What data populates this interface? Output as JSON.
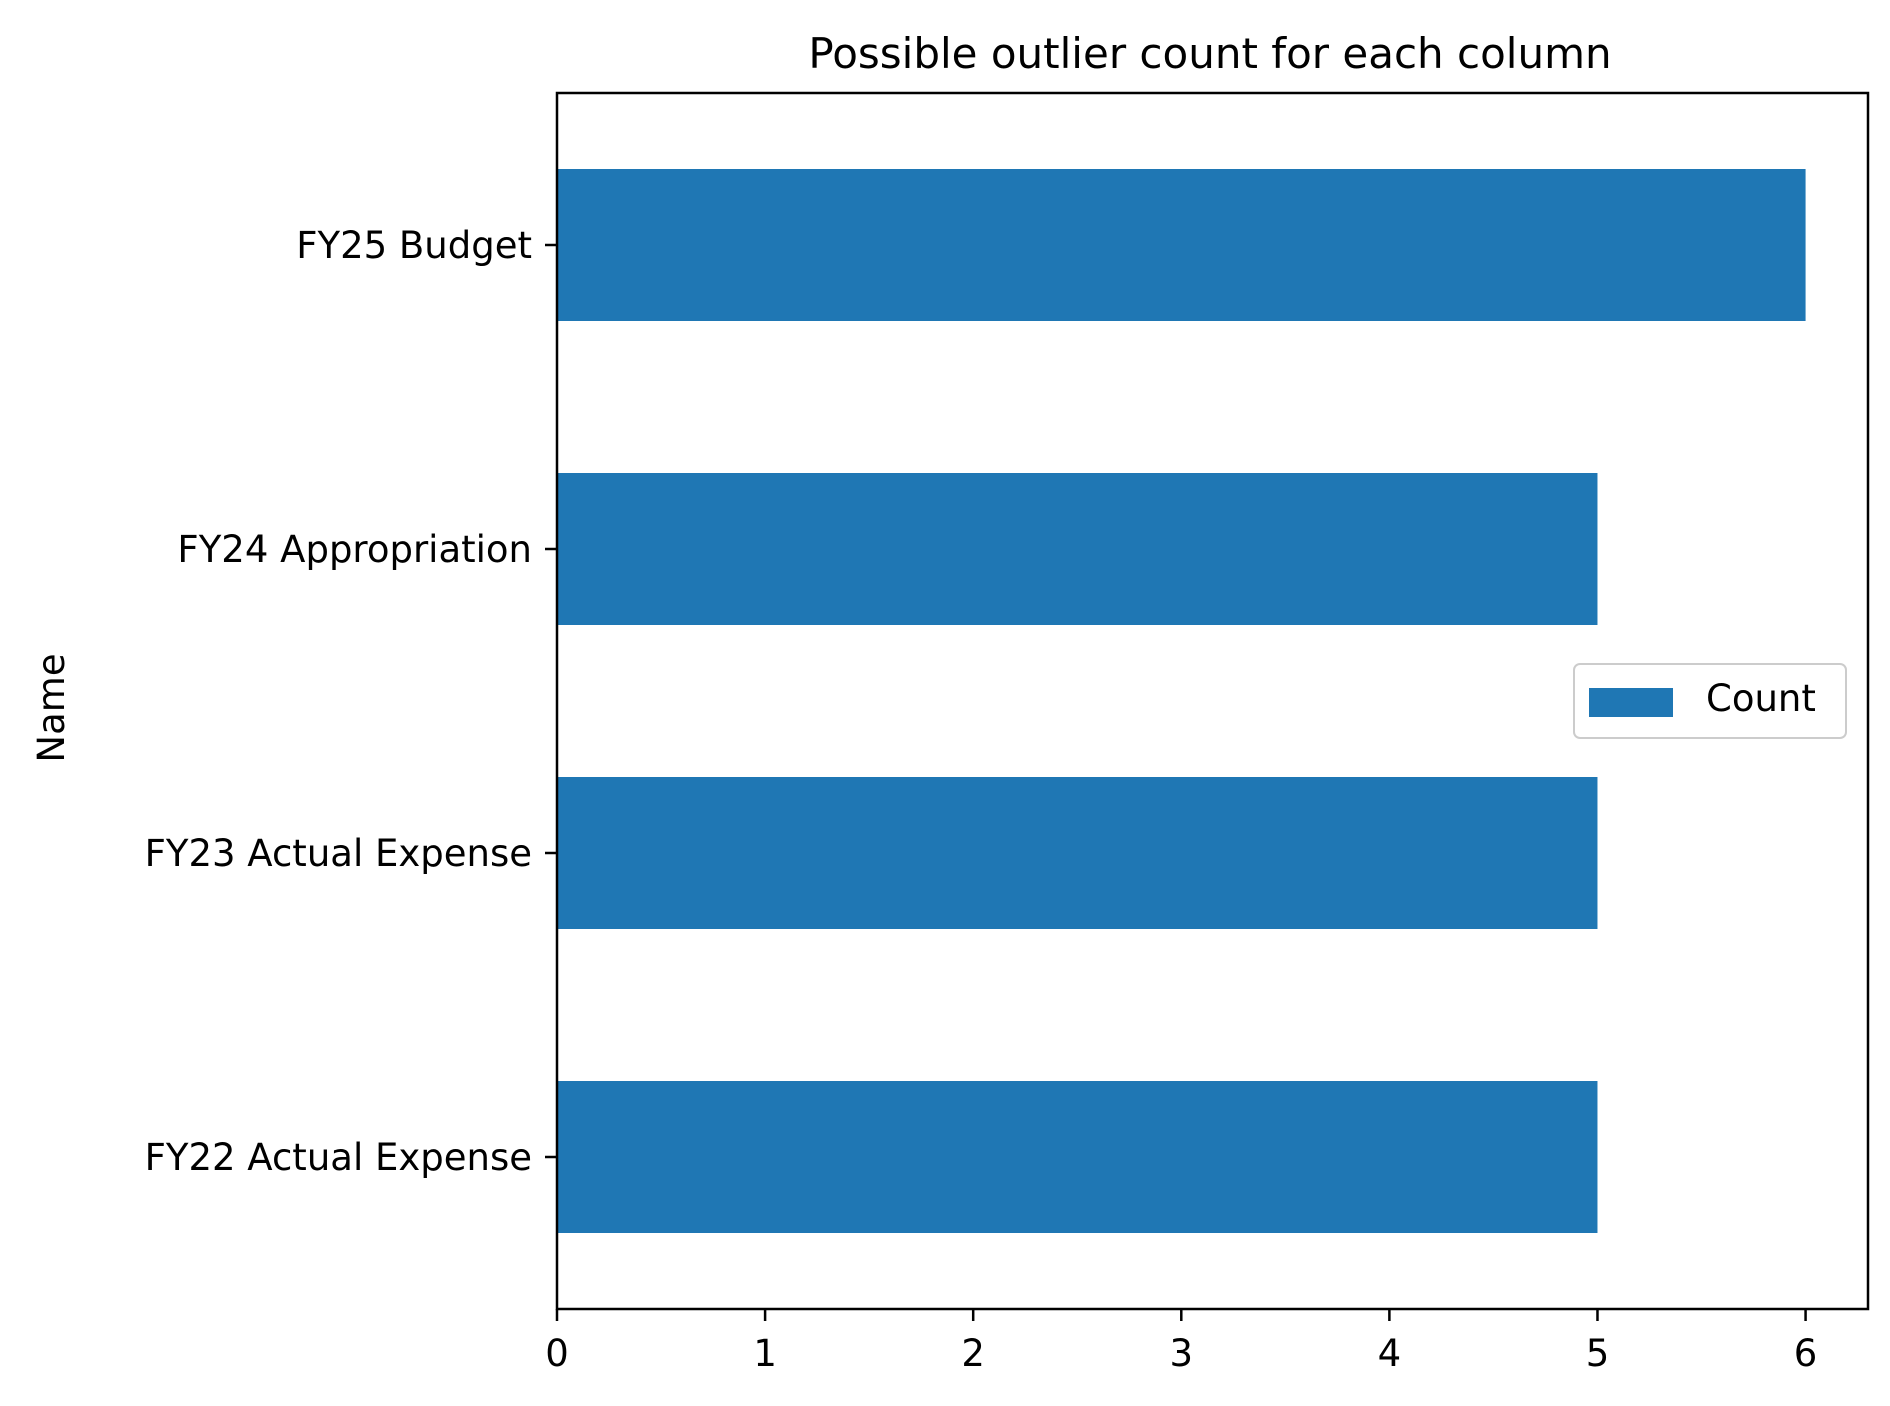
{
  "chart_data": {
    "type": "bar",
    "orientation": "horizontal",
    "title": "Possible outlier count for each column",
    "ylabel": "Name",
    "xlabel": "",
    "categories": [
      "FY22 Actual Expense",
      "FY23 Actual Expense",
      "FY24 Appropriation",
      "FY25 Budget"
    ],
    "series": [
      {
        "name": "Count",
        "values": [
          5,
          5,
          5,
          6
        ],
        "color": "#1f77b4"
      }
    ],
    "xlim": [
      0,
      6.3
    ],
    "xticks": [
      "0",
      "1",
      "2",
      "3",
      "4",
      "5",
      "6"
    ],
    "grid": false,
    "legend": {
      "position": "center-right"
    }
  }
}
